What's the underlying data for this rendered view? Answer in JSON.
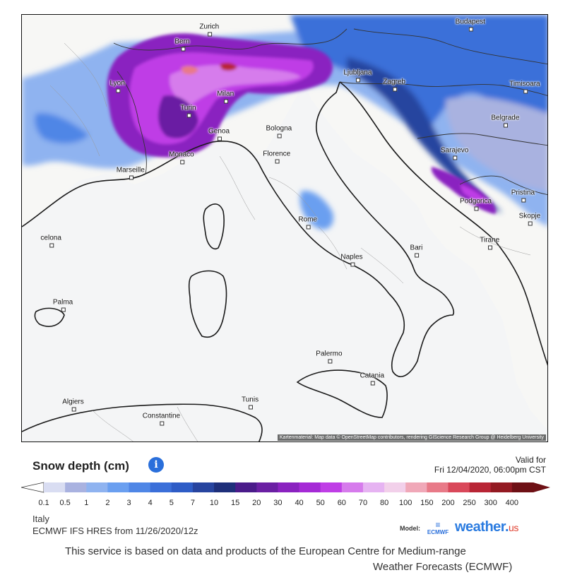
{
  "map": {
    "cities": [
      {
        "name": "Zurich",
        "x": 8.54,
        "y": 47.37
      },
      {
        "name": "Budapest",
        "x": 19.04,
        "y": 47.5
      },
      {
        "name": "Bern",
        "x": 7.45,
        "y": 46.95
      },
      {
        "name": "Lyon",
        "x": 4.84,
        "y": 45.76
      },
      {
        "name": "Ljubljana",
        "x": 14.51,
        "y": 46.06
      },
      {
        "name": "Zagreb",
        "x": 15.98,
        "y": 45.81
      },
      {
        "name": "Timisoara",
        "x": 21.23,
        "y": 45.75
      },
      {
        "name": "Milan",
        "x": 9.19,
        "y": 45.46
      },
      {
        "name": "Turin",
        "x": 7.69,
        "y": 45.07
      },
      {
        "name": "Belgrade",
        "x": 20.45,
        "y": 44.79
      },
      {
        "name": "Genoa",
        "x": 8.93,
        "y": 44.41
      },
      {
        "name": "Bologna",
        "x": 11.34,
        "y": 44.49
      },
      {
        "name": "Monaco",
        "x": 7.42,
        "y": 43.74
      },
      {
        "name": "Florence",
        "x": 11.25,
        "y": 43.77
      },
      {
        "name": "Sarajevo",
        "x": 18.41,
        "y": 43.86
      },
      {
        "name": "Marseille",
        "x": 5.37,
        "y": 43.3
      },
      {
        "name": "Pristina",
        "x": 21.16,
        "y": 42.66
      },
      {
        "name": "Podgorica",
        "x": 19.26,
        "y": 42.43
      },
      {
        "name": "Skopje",
        "x": 21.43,
        "y": 42.0
      },
      {
        "name": "Rome",
        "x": 12.5,
        "y": 41.9
      },
      {
        "name": "Barcelona",
        "x": 2.17,
        "y": 41.39,
        "label": "celona"
      },
      {
        "name": "Tirane",
        "x": 19.82,
        "y": 41.33
      },
      {
        "name": "Bari",
        "x": 16.87,
        "y": 41.12
      },
      {
        "name": "Naples",
        "x": 14.27,
        "y": 40.85
      },
      {
        "name": "Palma",
        "x": 2.65,
        "y": 39.57
      },
      {
        "name": "Palermo",
        "x": 13.36,
        "y": 38.12
      },
      {
        "name": "Catania",
        "x": 15.09,
        "y": 37.5
      },
      {
        "name": "Algiers",
        "x": 3.06,
        "y": 36.75
      },
      {
        "name": "Tunis",
        "x": 10.18,
        "y": 36.81
      },
      {
        "name": "Constantine",
        "x": 6.61,
        "y": 36.36
      }
    ],
    "attribution": "Kartenmaterial: Map data © OpenStreetMap contributors, rendering GIScience Research Group @ Heidelberg University"
  },
  "legend": {
    "title": "Snow depth (cm)",
    "info_icon": "info-icon",
    "valid_label": "Valid for",
    "valid_time": "Fri 12/04/2020, 06:00pm CST",
    "ticks": [
      "0.1",
      "0.5",
      "1",
      "2",
      "3",
      "4",
      "5",
      "7",
      "10",
      "15",
      "20",
      "30",
      "40",
      "50",
      "60",
      "70",
      "80",
      "100",
      "150",
      "200",
      "250",
      "300",
      "400"
    ],
    "colors": [
      "#d9ddf2",
      "#a9b2e0",
      "#8fb3f0",
      "#6a9ff0",
      "#4f86e6",
      "#3b6fd9",
      "#2e5cc6",
      "#27449f",
      "#1e2f7a",
      "#4a1b8a",
      "#6a1fa3",
      "#8a22c0",
      "#a52ad6",
      "#bf3ee6",
      "#d67bec",
      "#e6b3f2",
      "#f2d0ea",
      "#f0a8b8",
      "#e87a88",
      "#d9485a",
      "#b82535",
      "#931a22",
      "#6e1015"
    ]
  },
  "footer": {
    "region": "Italy",
    "model_run": "ECMWF IFS HRES from 11/26/2020/12z",
    "model_label": "Model:",
    "ecmwf_text": "ECMWF",
    "brand": "weather.",
    "brand_tail": "us",
    "disclaimer": "This service is based on data and products of the European Centre for Medium-range",
    "disclaimer_cont": "Weather Forecasts (ECMWF)"
  }
}
